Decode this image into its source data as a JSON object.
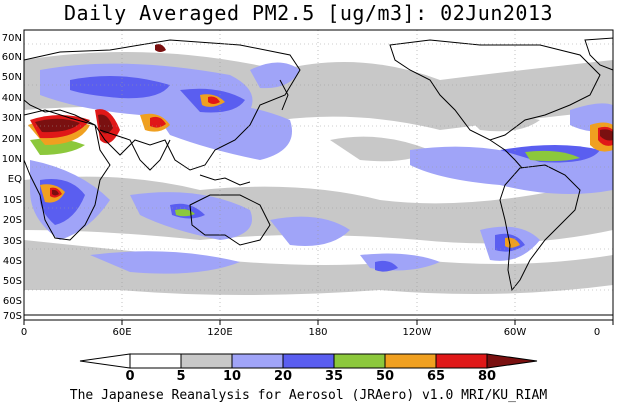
{
  "title": "Daily Averaged PM2.5 [ug/m3]: 02Jun2013",
  "credit": "The Japanese Reanalysis for Aerosol (JRAero) v1.0 MRI/KU_RIAM",
  "latitude_labels": [
    "70N",
    "60N",
    "50N",
    "40N",
    "30N",
    "20N",
    "10N",
    "EQ",
    "10S",
    "20S",
    "30S",
    "40S",
    "50S",
    "60S",
    "70S"
  ],
  "longitude_labels": [
    "0",
    "60E",
    "120E",
    "180",
    "120W",
    "60W",
    "0"
  ],
  "colorbar": {
    "levels": [
      "0",
      "5",
      "10",
      "20",
      "35",
      "50",
      "65",
      "80"
    ],
    "colors": [
      "#ffffff",
      "#c8c8c8",
      "#a0a4f8",
      "#5a5ef0",
      "#8cc83c",
      "#f0a020",
      "#e01818",
      "#7a1010"
    ]
  }
}
